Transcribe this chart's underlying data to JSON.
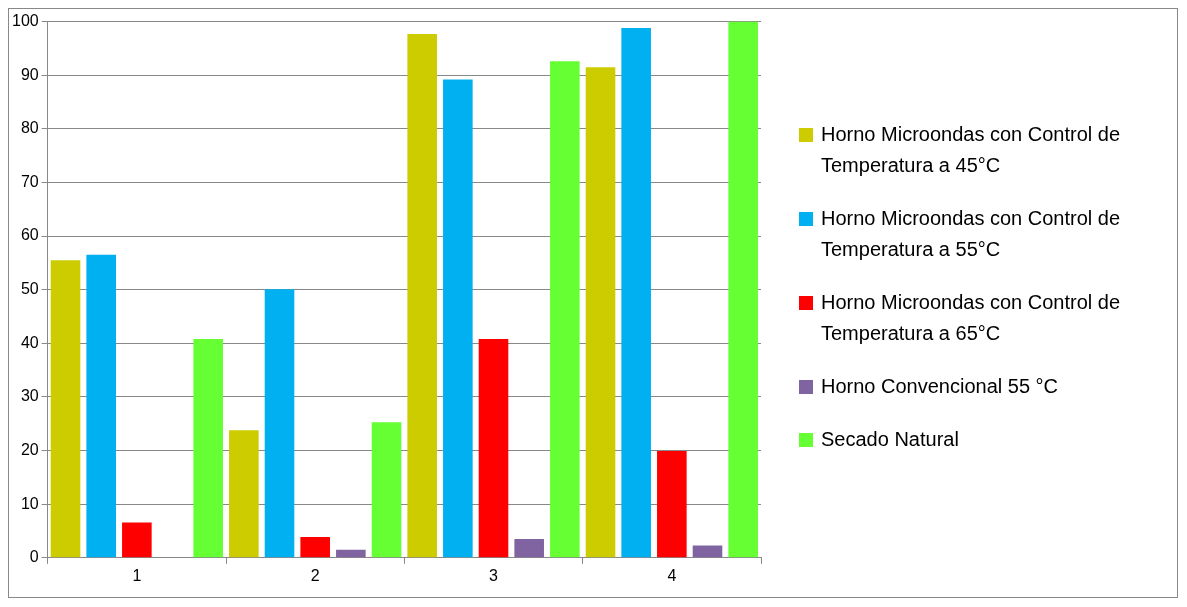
{
  "chart_data": {
    "type": "bar",
    "categories": [
      "1",
      "2",
      "3",
      "4"
    ],
    "series": [
      {
        "name": "Horno Microondas con Control de Temperatura a 45°C",
        "color": "#cccc00",
        "values": [
          55.5,
          23.8,
          97.7,
          91.5
        ]
      },
      {
        "name": "Horno Microondas con Control de Temperatura a 55°C",
        "color": "#00b0f0",
        "values": [
          56.5,
          50.1,
          89.2,
          98.8
        ]
      },
      {
        "name": "Horno Microondas con Control de Temperatura a 65°C",
        "color": "#ff0000",
        "values": [
          6.6,
          3.9,
          40.8,
          19.9
        ]
      },
      {
        "name": "Horno Convencional 55 °C",
        "color": "#8064a2",
        "values": [
          null,
          1.5,
          3.5,
          2.3
        ]
      },
      {
        "name": "Secado Natural",
        "color": "#66ff33",
        "values": [
          40.8,
          25.3,
          92.6,
          100
        ]
      }
    ],
    "ylim": [
      0,
      100
    ],
    "yticks": [
      0,
      10,
      20,
      30,
      40,
      50,
      60,
      70,
      80,
      90,
      100
    ],
    "grid": "y",
    "legend": "right"
  }
}
